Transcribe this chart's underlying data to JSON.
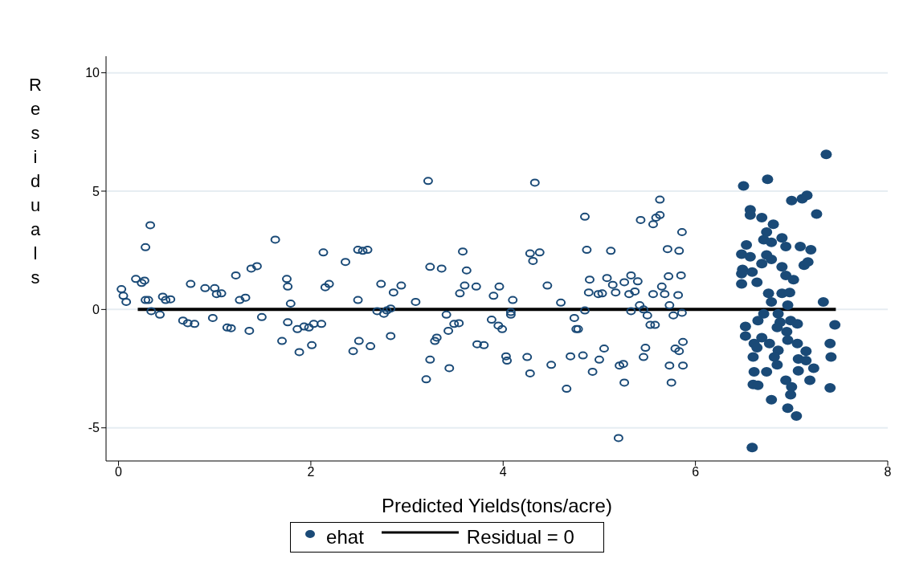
{
  "chart_data": {
    "type": "scatter",
    "xlabel": "Predicted Yields(tons/acre)",
    "ylabel": "Residuals",
    "xlim": [
      -0.13,
      8
    ],
    "xticks": [
      0,
      2,
      4,
      6,
      8
    ],
    "ylim": [
      -6.4,
      10.7
    ],
    "yticks": [
      -5,
      0,
      5,
      10
    ],
    "grid": "y",
    "legend": "bottom",
    "marker": "circle",
    "series": [
      {
        "color": "#1a4a77",
        "x": [
          0.03,
          0.05,
          0.08,
          0.18,
          0.24,
          0.27,
          0.28,
          0.31,
          0.33,
          0.28,
          0.34,
          0.43,
          0.46,
          0.49,
          0.54,
          0.67,
          0.72,
          0.75,
          0.79,
          0.9,
          0.98,
          1.0,
          1.02,
          1.07,
          1.13,
          1.17,
          1.22,
          1.26,
          1.32,
          1.36,
          1.38,
          1.44,
          1.49,
          1.63,
          1.7,
          1.75,
          1.76,
          1.76,
          1.79,
          1.86,
          1.88,
          1.93,
          1.98,
          2.03,
          2.01,
          2.11,
          2.13,
          2.15,
          2.19,
          2.36,
          2.44,
          2.49,
          2.5,
          2.49,
          2.54,
          2.59,
          2.62,
          2.69,
          2.73,
          2.76,
          2.79,
          2.83,
          2.86,
          2.83,
          2.94,
          3.09,
          3.2,
          3.22,
          3.24,
          3.24,
          3.29,
          3.31,
          3.36,
          3.41,
          3.43,
          3.44,
          3.49,
          3.54,
          3.55,
          3.58,
          3.6,
          3.62,
          3.72,
          3.73,
          3.8,
          3.88,
          3.9,
          3.95,
          3.96,
          3.99,
          4.03,
          4.04,
          4.08,
          4.08,
          4.1,
          4.25,
          4.28,
          4.28,
          4.31,
          4.33,
          4.38,
          4.46,
          4.5,
          4.6,
          4.66,
          4.7,
          4.74,
          4.76,
          4.78,
          4.83,
          4.85,
          4.85,
          4.87,
          4.89,
          4.9,
          4.93,
          4.99,
          5.0,
          5.03,
          5.05,
          5.08,
          5.12,
          5.14,
          5.17,
          5.21,
          5.25,
          5.2,
          5.26,
          5.26,
          5.31,
          5.33,
          5.33,
          5.37,
          5.4,
          5.42,
          5.43,
          5.46,
          5.46,
          5.48,
          5.5,
          5.53,
          5.56,
          5.56,
          5.58,
          5.59,
          5.63,
          5.63,
          5.65,
          5.68,
          5.71,
          5.72,
          5.73,
          5.73,
          5.75,
          5.77,
          5.79,
          5.82,
          5.83,
          5.83,
          5.86,
          5.87,
          5.86,
          5.85,
          5.87
        ],
        "values": [
          0.86,
          0.58,
          0.32,
          1.29,
          1.12,
          1.22,
          0.4,
          0.4,
          3.56,
          2.63,
          -0.07,
          -0.22,
          0.54,
          0.4,
          0.43,
          -0.47,
          -0.58,
          1.08,
          -0.61,
          0.9,
          -0.36,
          0.9,
          0.65,
          0.68,
          -0.76,
          -0.79,
          1.44,
          0.4,
          0.5,
          -0.9,
          1.73,
          1.83,
          -0.32,
          2.95,
          -1.33,
          1.29,
          0.97,
          -0.54,
          0.25,
          -0.83,
          -1.8,
          -0.72,
          -0.76,
          -0.61,
          -1.51,
          -0.61,
          2.41,
          0.94,
          1.08,
          2.01,
          -1.76,
          2.52,
          -1.33,
          0.4,
          2.48,
          2.52,
          -1.55,
          -0.07,
          1.08,
          -0.18,
          -0.04,
          0.04,
          0.72,
          -1.12,
          1.01,
          0.32,
          -2.95,
          5.43,
          1.8,
          -2.12,
          -1.33,
          -1.19,
          1.73,
          -0.22,
          -0.9,
          -2.48,
          -0.61,
          -0.58,
          0.68,
          2.45,
          1.01,
          1.65,
          0.97,
          -1.47,
          -1.51,
          -0.43,
          0.58,
          -0.68,
          0.97,
          -0.83,
          -1.98,
          -2.16,
          -0.22,
          -0.11,
          0.4,
          -2.01,
          -2.7,
          2.37,
          2.05,
          5.36,
          2.41,
          1.01,
          -2.34,
          0.29,
          -3.35,
          -1.98,
          -0.36,
          -0.83,
          -0.83,
          -1.94,
          -0.04,
          3.92,
          2.52,
          0.72,
          1.26,
          -2.63,
          0.65,
          -2.12,
          0.68,
          -1.65,
          1.33,
          2.48,
          1.04,
          0.72,
          -2.37,
          -2.3,
          -5.43,
          -3.09,
          1.15,
          0.65,
          1.44,
          -0.07,
          0.76,
          1.19,
          0.18,
          3.78,
          -2.01,
          0.0,
          -1.62,
          -0.25,
          -0.65,
          3.6,
          0.65,
          -0.65,
          3.88,
          3.99,
          4.64,
          0.97,
          0.65,
          2.55,
          1.4,
          0.18,
          -2.37,
          -3.09,
          -0.25,
          -1.65,
          0.61,
          -1.76,
          2.48,
          3.27,
          -1.37,
          -0.14,
          1.44,
          -2.37
        ]
      },
      {
        "name": "ehat",
        "color": "#1a4a77",
        "x": [
          7.36,
          6.5,
          6.75,
          7.0,
          7.11,
          7.16,
          6.57,
          6.57,
          6.69,
          7.26,
          6.81,
          6.74,
          6.71,
          6.79,
          6.9,
          6.94,
          7.09,
          7.2,
          6.53,
          6.48,
          6.57,
          6.74,
          6.79,
          6.69,
          7.13,
          7.17,
          6.9,
          6.49,
          6.59,
          6.48,
          6.94,
          7.02,
          6.48,
          6.64,
          6.76,
          6.9,
          6.98,
          6.79,
          6.96,
          7.33,
          6.71,
          6.86,
          6.65,
          6.52,
          6.88,
          6.99,
          7.06,
          7.45,
          6.85,
          6.95,
          6.52,
          6.69,
          6.61,
          6.77,
          6.96,
          7.06,
          7.4,
          6.64,
          6.86,
          7.15,
          6.6,
          6.82,
          7.07,
          7.15,
          7.41,
          6.85,
          7.23,
          6.61,
          6.74,
          7.07,
          7.19,
          6.94,
          6.6,
          6.65,
          7.0,
          6.99,
          7.4,
          6.79,
          6.96,
          7.05,
          6.59
        ],
        "values": [
          6.55,
          5.22,
          5.5,
          4.6,
          4.68,
          4.82,
          4.21,
          3.99,
          3.88,
          4.03,
          3.6,
          3.27,
          2.95,
          2.84,
          3.02,
          2.66,
          2.66,
          2.52,
          2.73,
          2.34,
          2.23,
          2.3,
          2.12,
          1.94,
          1.87,
          2.01,
          1.8,
          1.69,
          1.58,
          1.51,
          1.44,
          1.26,
          1.08,
          1.15,
          0.68,
          0.68,
          0.72,
          0.32,
          0.18,
          0.32,
          -0.18,
          -0.18,
          -0.47,
          -0.72,
          -0.54,
          -0.47,
          -0.61,
          -0.65,
          -0.76,
          -0.94,
          -1.12,
          -1.19,
          -1.44,
          -1.44,
          -1.29,
          -1.44,
          -1.44,
          -1.62,
          -1.73,
          -1.76,
          -2.01,
          -2.01,
          -2.09,
          -2.16,
          -2.01,
          -2.34,
          -2.48,
          -2.63,
          -2.63,
          -2.59,
          -2.99,
          -2.99,
          -3.17,
          -3.2,
          -3.27,
          -3.6,
          -3.31,
          -3.81,
          -4.17,
          -4.5,
          -5.83
        ]
      },
      {
        "type": "line",
        "name": "Residual = 0",
        "color": "#000000",
        "marker": "none",
        "x": [
          0.2,
          7.46
        ],
        "values": [
          0,
          0
        ]
      }
    ]
  }
}
